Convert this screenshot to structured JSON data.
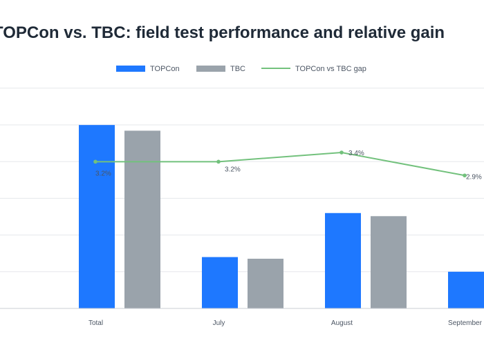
{
  "chart_data": {
    "type": "bar",
    "title": "TOPCon vs. TBC: field test performance and relative gain",
    "categories": [
      "Total",
      "July",
      "August",
      "September"
    ],
    "series": [
      {
        "name": "TOPCon",
        "type": "bar",
        "color": "#1e78ff",
        "values": [
          1.0,
          0.28,
          0.52,
          0.2
        ]
      },
      {
        "name": "TBC",
        "type": "bar",
        "color": "#9aa3ab",
        "values": [
          0.969,
          0.271,
          0.503,
          0.194
        ]
      },
      {
        "name": "TOPCon vs TBC gap",
        "type": "line",
        "color": "#72c17c",
        "values": [
          3.2,
          3.2,
          3.4,
          2.9
        ],
        "labels": [
          "3.2%",
          "3.2%",
          "3.4%",
          "2.9%"
        ]
      }
    ],
    "ylim_bars": [
      0,
      1.2
    ],
    "ylim_gap": [
      0,
      4.8
    ],
    "grid": true,
    "legend": "top-center",
    "xlabel": "",
    "ylabel": ""
  }
}
